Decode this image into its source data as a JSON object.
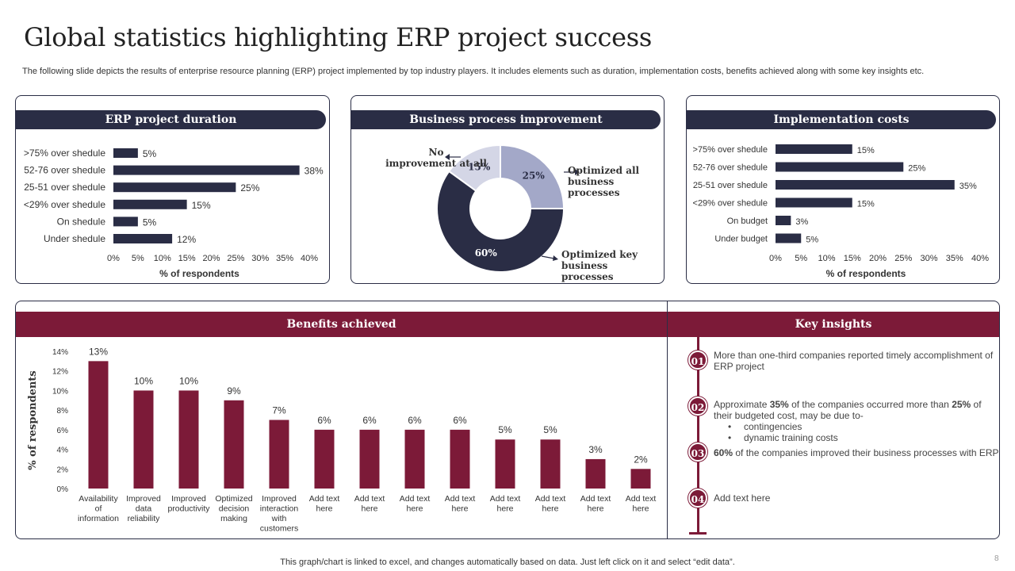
{
  "page": {
    "title": "Global statistics highlighting ERP project success",
    "subtitle": "The following slide depicts the results of enterprise resource planning (ERP) project implemented by top industry players. It includes elements such as duration, implementation costs, benefits achieved along with some key insights etc.",
    "footer": "This graph/chart is linked to excel, and changes automatically based on data. Just left click on it and select “edit data”.",
    "page_number": "8"
  },
  "colors": {
    "navy": "#2a2d45",
    "maroon": "#7c1a38",
    "light": "#a3a8c8",
    "lighter": "#d4d6e6"
  },
  "sections": {
    "benefits_title": "Benefits achieved",
    "insights_title": "Key insights"
  },
  "insights": [
    {
      "num": "01",
      "text": "More than one-third companies reported timely accomplishment of ERP project"
    },
    {
      "num": "02",
      "pre": "Approximate ",
      "b1": "35%",
      "mid": " of the companies occurred more than ",
      "b2": "25%",
      "post": " of their budgeted cost, may be due to-",
      "bullets": [
        "contingencies",
        "dynamic training costs"
      ]
    },
    {
      "num": "03",
      "b1": "60%",
      "post": " of the companies improved their business processes with ERP"
    },
    {
      "num": "04",
      "text": "Add text here"
    }
  ],
  "chart_data": [
    {
      "type": "bar",
      "orientation": "horizontal",
      "title": "ERP project duration",
      "categories": [
        ">75% over shedule",
        "52-76 over shedule",
        "25-51 over shedule",
        "<29% over shedule",
        "On shedule",
        "Under shedule"
      ],
      "values": [
        5,
        38,
        25,
        15,
        5,
        12
      ],
      "value_labels": [
        "5%",
        "38%",
        "25%",
        "15%",
        "5%",
        "12%"
      ],
      "xticks": [
        "0%",
        "5%",
        "10%",
        "15%",
        "20%",
        "25%",
        "30%",
        "35%",
        "40%"
      ],
      "xlim": [
        0,
        40
      ],
      "xlabel": "% of respondents"
    },
    {
      "type": "pie",
      "variant": "donut",
      "title": "Business process improvement",
      "slices": [
        {
          "label": "Optimized all business processes",
          "value": 25,
          "value_label": "25%",
          "color": "#a3a8c8"
        },
        {
          "label": "Optimized key business processes",
          "value": 60,
          "value_label": "60%",
          "color": "#2a2d45"
        },
        {
          "label": "No improvement at all",
          "value": 15,
          "value_label": "15%",
          "color": "#d4d6e6"
        }
      ]
    },
    {
      "type": "bar",
      "orientation": "horizontal",
      "title": "Implementation costs",
      "categories": [
        ">75% over shedule",
        "52-76 over shedule",
        "25-51 over shedule",
        "<29% over shedule",
        "On budget",
        "Under budget"
      ],
      "values": [
        15,
        25,
        35,
        15,
        3,
        5
      ],
      "value_labels": [
        "15%",
        "25%",
        "35%",
        "15%",
        "3%",
        "5%"
      ],
      "xticks": [
        "0%",
        "5%",
        "10%",
        "15%",
        "20%",
        "25%",
        "30%",
        "35%",
        "40%"
      ],
      "xlim": [
        0,
        40
      ],
      "xlabel": "% of respondents"
    },
    {
      "type": "bar",
      "orientation": "vertical",
      "title": "Benefits achieved",
      "categories": [
        "Availability of information",
        "Improved data reliability",
        "Improved productivity",
        "Optimized decision making",
        "Improved interaction with customers",
        "Add text here",
        "Add text here",
        "Add text here",
        "Add text here",
        "Add text here",
        "Add text here",
        "Add text here",
        "Add text here"
      ],
      "values": [
        13,
        10,
        10,
        9,
        7,
        6,
        6,
        6,
        6,
        5,
        5,
        3,
        2
      ],
      "value_labels": [
        "13%",
        "10%",
        "10%",
        "9%",
        "7%",
        "6%",
        "6%",
        "6%",
        "6%",
        "5%",
        "5%",
        "3%",
        "2%"
      ],
      "yticks": [
        "0%",
        "2%",
        "4%",
        "6%",
        "8%",
        "10%",
        "12%",
        "14%"
      ],
      "ylim": [
        0,
        14
      ],
      "ylabel": "% of respondents"
    }
  ]
}
